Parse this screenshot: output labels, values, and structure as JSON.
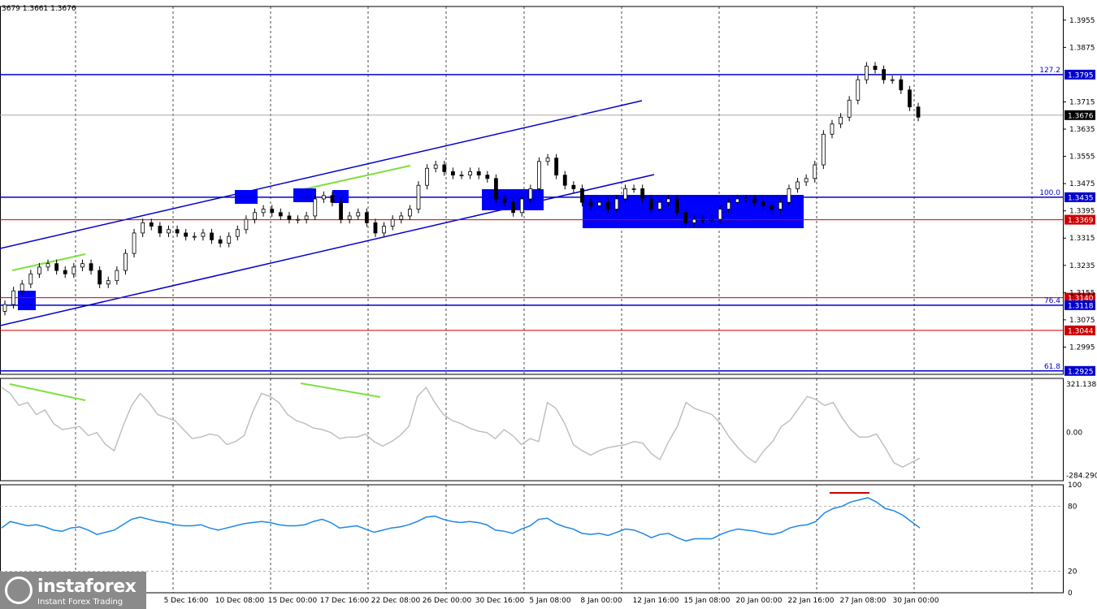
{
  "header": {
    "ohlc_text": "3679 1.3661 1.3676"
  },
  "logo": {
    "name": "instaforex",
    "tagline": "Instant Forex Trading"
  },
  "colors": {
    "level_blue": "#0000cc",
    "level_red": "#cc0000",
    "bull": "#000000",
    "cci_line": "#c0c0c0",
    "rsi_line": "#1e88e5",
    "divergence": "#7fe040",
    "zone": "#0000ff"
  },
  "chart_data": [
    {
      "type": "line",
      "name": "price",
      "x_labels": [
        "5 Dec 16:00",
        "10 Dec 08:00",
        "15 Dec 00:00",
        "17 Dec 16:00",
        "22 Dec 08:00",
        "26 Dec 00:00",
        "30 Dec 16:00",
        "5 Jan 08:00",
        "8 Jan 00:00",
        "12 Jan 16:00",
        "15 Jan 08:00",
        "20 Jan 00:00",
        "22 Jan 16:00",
        "27 Jan 08:00",
        "30 Jan 00:00"
      ],
      "y_ticks": [
        "1.3955",
        "1.3875",
        "1.3715",
        "1.3635",
        "1.3555",
        "1.3475",
        "1.3395",
        "1.3315",
        "1.3235",
        "1.3155",
        "1.3075",
        "1.2995"
      ],
      "ylim": [
        1.2915,
        1.3995
      ],
      "levels": [
        {
          "price": 1.3795,
          "label": "1.3795",
          "fib": "127.2",
          "color": "blue"
        },
        {
          "price": 1.3676,
          "label": "1.3676",
          "fib": "",
          "color": "current"
        },
        {
          "price": 1.3435,
          "label": "1.3435",
          "fib": "100.0",
          "color": "blue"
        },
        {
          "price": 1.3369,
          "label": "1.3369",
          "fib": "",
          "color": "red"
        },
        {
          "price": 1.314,
          "label": "1.3140",
          "fib": "",
          "color": "red"
        },
        {
          "price": 1.3118,
          "label": "1.3118",
          "fib": "76.4",
          "color": "blue"
        },
        {
          "price": 1.3044,
          "label": "1.3044",
          "fib": "",
          "color": "red"
        },
        {
          "price": 1.2925,
          "label": "1.2925",
          "fib": "61.8",
          "color": "blue"
        }
      ],
      "close": [
        1.312,
        1.316,
        1.318,
        1.321,
        1.323,
        1.324,
        1.322,
        1.321,
        1.323,
        1.324,
        1.322,
        1.318,
        1.319,
        1.322,
        1.327,
        1.333,
        1.336,
        1.335,
        1.333,
        1.334,
        1.333,
        1.332,
        1.332,
        1.333,
        1.331,
        1.33,
        1.332,
        1.334,
        1.337,
        1.339,
        1.34,
        1.339,
        1.338,
        1.337,
        1.337,
        1.338,
        1.343,
        1.344,
        1.342,
        1.337,
        1.338,
        1.339,
        1.336,
        1.333,
        1.335,
        1.337,
        1.338,
        1.34,
        1.347,
        1.352,
        1.353,
        1.351,
        1.35,
        1.35,
        1.351,
        1.35,
        1.349,
        1.343,
        1.342,
        1.339,
        1.343,
        1.346,
        1.354,
        1.355,
        1.35,
        1.347,
        1.346,
        1.342,
        1.341,
        1.342,
        1.34,
        1.343,
        1.346,
        1.346,
        1.343,
        1.34,
        1.342,
        1.343,
        1.339,
        1.336,
        1.337,
        1.337,
        1.337,
        1.34,
        1.342,
        1.343,
        1.343,
        1.342,
        1.341,
        1.34,
        1.342,
        1.346,
        1.348,
        1.349,
        1.353,
        1.362,
        1.365,
        1.367,
        1.372,
        1.378,
        1.382,
        1.381,
        1.378,
        1.378,
        1.375,
        1.37,
        1.367
      ],
      "open": [
        1.31,
        1.312,
        1.316,
        1.318,
        1.321,
        1.323,
        1.324,
        1.322,
        1.321,
        1.323,
        1.324,
        1.322,
        1.318,
        1.319,
        1.322,
        1.327,
        1.333,
        1.336,
        1.335,
        1.333,
        1.334,
        1.333,
        1.332,
        1.332,
        1.333,
        1.331,
        1.33,
        1.332,
        1.334,
        1.337,
        1.339,
        1.34,
        1.339,
        1.338,
        1.337,
        1.337,
        1.338,
        1.343,
        1.344,
        1.342,
        1.337,
        1.338,
        1.339,
        1.336,
        1.333,
        1.335,
        1.337,
        1.338,
        1.34,
        1.347,
        1.352,
        1.353,
        1.351,
        1.35,
        1.35,
        1.351,
        1.35,
        1.349,
        1.343,
        1.342,
        1.339,
        1.343,
        1.346,
        1.354,
        1.355,
        1.35,
        1.347,
        1.346,
        1.342,
        1.341,
        1.342,
        1.34,
        1.343,
        1.346,
        1.346,
        1.343,
        1.34,
        1.342,
        1.343,
        1.339,
        1.336,
        1.337,
        1.337,
        1.337,
        1.34,
        1.342,
        1.343,
        1.343,
        1.342,
        1.341,
        1.34,
        1.342,
        1.346,
        1.348,
        1.349,
        1.353,
        1.362,
        1.365,
        1.367,
        1.372,
        1.378,
        1.382,
        1.381,
        1.378,
        1.378,
        1.375,
        1.37
      ]
    },
    {
      "type": "line",
      "name": "cci",
      "y_ticks": [
        "321.1386",
        "0.00",
        "-284.2905"
      ],
      "ylim": [
        -320,
        360
      ],
      "values": [
        300,
        260,
        180,
        200,
        120,
        150,
        60,
        20,
        30,
        40,
        -20,
        0,
        -80,
        -120,
        40,
        180,
        260,
        200,
        120,
        100,
        80,
        20,
        -40,
        -30,
        -10,
        -20,
        -80,
        -60,
        -20,
        140,
        260,
        240,
        200,
        120,
        80,
        60,
        30,
        20,
        0,
        -40,
        -30,
        -30,
        -10,
        -60,
        -90,
        -60,
        -20,
        40,
        240,
        300,
        200,
        120,
        80,
        60,
        30,
        10,
        0,
        -40,
        20,
        -20,
        -80,
        -40,
        -60,
        200,
        160,
        60,
        -80,
        -120,
        -150,
        -120,
        -100,
        -90,
        -80,
        -60,
        -70,
        -140,
        -180,
        -60,
        40,
        200,
        160,
        140,
        120,
        60,
        -30,
        -100,
        -160,
        -200,
        -120,
        -60,
        40,
        80,
        160,
        240,
        220,
        180,
        200,
        100,
        20,
        -30,
        -30,
        -10,
        -100,
        -200,
        -230,
        -200,
        -170
      ]
    },
    {
      "type": "line",
      "name": "rsi",
      "y_ticks": [
        "100",
        "80",
        "20",
        "0"
      ],
      "ylim": [
        0,
        100
      ],
      "values": [
        60,
        66,
        64,
        62,
        63,
        61,
        58,
        57,
        60,
        61,
        58,
        54,
        56,
        58,
        63,
        68,
        70,
        68,
        66,
        65,
        63,
        62,
        62,
        63,
        60,
        58,
        60,
        62,
        64,
        65,
        66,
        65,
        63,
        62,
        62,
        63,
        66,
        68,
        65,
        60,
        61,
        62,
        59,
        56,
        58,
        60,
        61,
        63,
        66,
        70,
        71,
        68,
        66,
        65,
        66,
        65,
        63,
        58,
        57,
        55,
        59,
        62,
        68,
        69,
        64,
        61,
        59,
        55,
        54,
        55,
        53,
        56,
        59,
        58,
        55,
        51,
        54,
        55,
        51,
        48,
        50,
        50,
        50,
        54,
        57,
        59,
        58,
        57,
        55,
        54,
        56,
        60,
        62,
        63,
        66,
        74,
        78,
        80,
        84,
        86,
        88,
        84,
        78,
        76,
        72,
        66,
        60
      ]
    }
  ]
}
